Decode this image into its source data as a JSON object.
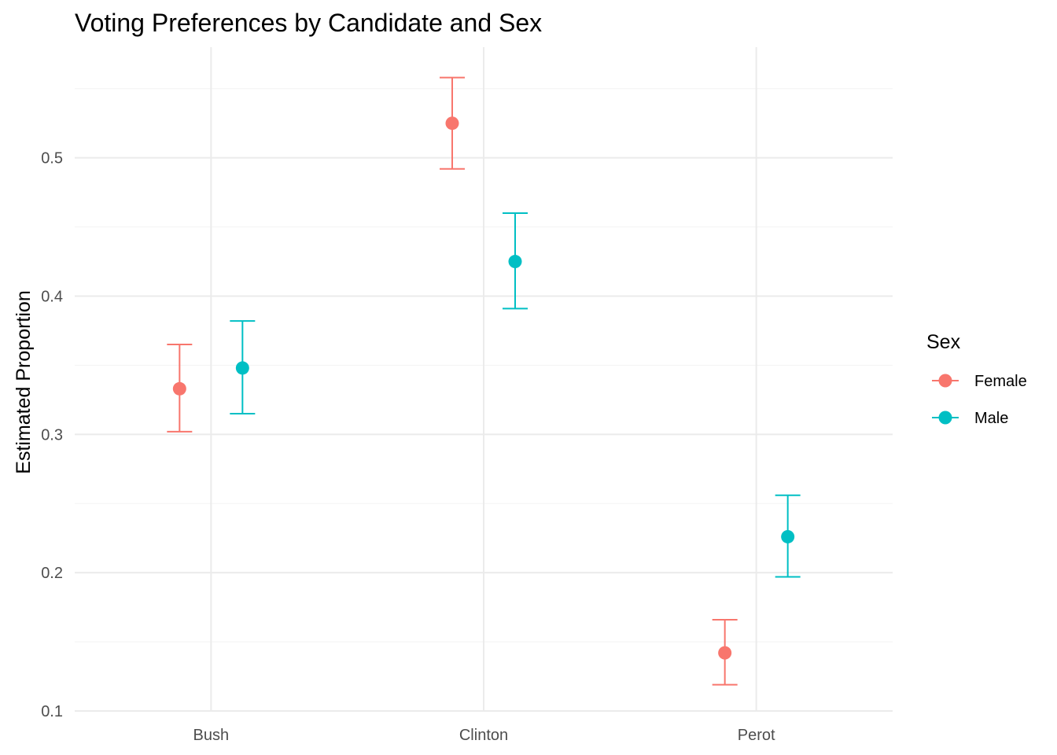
{
  "chart_data": {
    "type": "scatter",
    "subtype": "point-with-error-bars",
    "title": "Voting Preferences by Candidate and Sex",
    "xlabel": "",
    "ylabel": "Estimated Proportion",
    "categories": [
      "Bush",
      "Clinton",
      "Perot"
    ],
    "ylim": [
      0.1,
      0.58
    ],
    "yticks": [
      0.1,
      0.2,
      0.3,
      0.4,
      0.5
    ],
    "ytick_labels": [
      "0.1",
      "0.2",
      "0.3",
      "0.4",
      "0.5"
    ],
    "grid": true,
    "legend": {
      "title": "Sex",
      "placement": "right"
    },
    "series": [
      {
        "name": "Female",
        "color": "#F8766D",
        "values": [
          0.333,
          0.525,
          0.142
        ],
        "lower": [
          0.302,
          0.492,
          0.119
        ],
        "upper": [
          0.365,
          0.558,
          0.166
        ]
      },
      {
        "name": "Male",
        "color": "#00BFC4",
        "values": [
          0.348,
          0.425,
          0.226
        ],
        "lower": [
          0.315,
          0.391,
          0.197
        ],
        "upper": [
          0.382,
          0.46,
          0.256
        ]
      }
    ]
  }
}
